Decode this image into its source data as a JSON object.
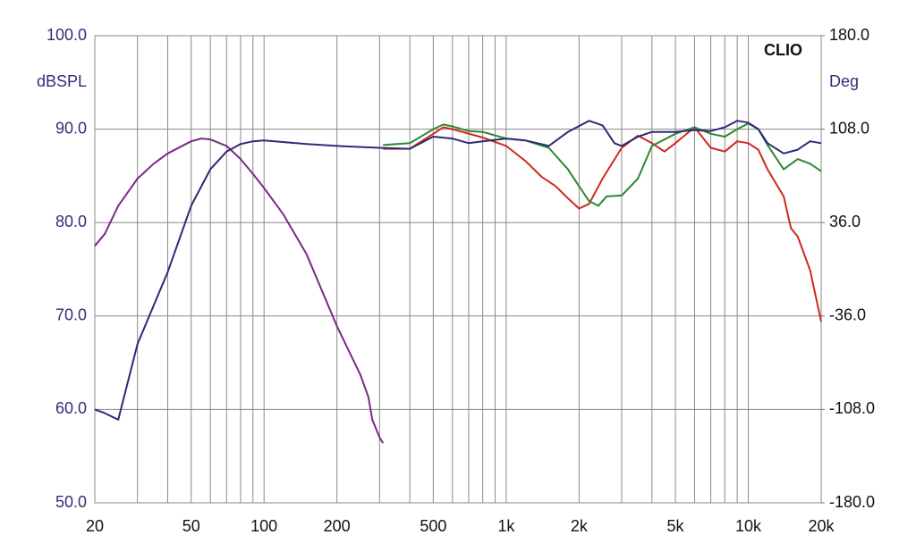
{
  "chart_data": {
    "type": "line",
    "annotation": "CLIO",
    "ylabel": "dBSPL",
    "y2label": "Deg",
    "xscale": "log",
    "grid": true,
    "xlim": [
      20,
      20000
    ],
    "xticks": [
      20,
      50,
      100,
      200,
      500,
      {
        "value": 1000,
        "label": "1k"
      },
      {
        "value": 2000,
        "label": "2k"
      },
      {
        "value": 5000,
        "label": "5k"
      },
      {
        "value": 10000,
        "label": "10k"
      },
      {
        "value": 20000,
        "label": "20k"
      }
    ],
    "minor_xticks": [
      30,
      40,
      60,
      70,
      80,
      90,
      300,
      400,
      600,
      700,
      800,
      900,
      3000,
      4000,
      6000,
      7000,
      8000,
      9000
    ],
    "ylim": [
      50,
      100
    ],
    "yticks": [
      {
        "value": 50,
        "label": "50.0"
      },
      {
        "value": 60,
        "label": "60.0"
      },
      {
        "value": 70,
        "label": "70.0"
      },
      {
        "value": 80,
        "label": "80.0"
      },
      {
        "value": 90,
        "label": "90.0"
      },
      {
        "value": 100,
        "label": "100.0"
      }
    ],
    "y2lim": [
      -180,
      180
    ],
    "y2ticks": [
      {
        "value": -180,
        "label": "-180.0"
      },
      {
        "value": -108,
        "label": "-108.0"
      },
      {
        "value": -36,
        "label": "-36.0"
      },
      {
        "value": 36,
        "label": "36.0"
      },
      {
        "value": 108,
        "label": "108.0"
      },
      {
        "value": 180,
        "label": "180.0"
      }
    ],
    "series": [
      {
        "color": "#7a2a86",
        "x": [
          20,
          22,
          25,
          30,
          35,
          40,
          50,
          55,
          60,
          70,
          80,
          90,
          100,
          120,
          150,
          200,
          250,
          270,
          280,
          300,
          310
        ],
        "values": [
          77.5,
          78.8,
          81.8,
          84.7,
          86.3,
          87.4,
          88.7,
          89.0,
          88.9,
          88.2,
          86.8,
          85.2,
          83.7,
          80.9,
          76.6,
          68.9,
          63.7,
          61.3,
          58.9,
          57.0,
          56.4
        ]
      },
      {
        "color": "#cc2a1e",
        "x": [
          310,
          400,
          500,
          550,
          600,
          800,
          1000,
          1200,
          1400,
          1600,
          1800,
          2000,
          2200,
          2500,
          3000,
          3500,
          4000,
          4500,
          5000,
          6000,
          7000,
          8000,
          9000,
          10000,
          11000,
          12000,
          14000,
          15000,
          16000,
          18000,
          20000
        ],
        "values": [
          87.9,
          87.9,
          89.5,
          90.2,
          90.0,
          89.1,
          88.2,
          86.6,
          84.9,
          83.9,
          82.6,
          81.5,
          82.0,
          84.7,
          88.0,
          89.3,
          88.5,
          87.6,
          88.5,
          90.2,
          88.0,
          87.6,
          88.7,
          88.5,
          87.8,
          85.7,
          82.8,
          79.4,
          78.5,
          74.9,
          69.4
        ]
      },
      {
        "color": "#2a8a2e",
        "x": [
          310,
          400,
          500,
          550,
          600,
          700,
          800,
          1000,
          1200,
          1500,
          1800,
          2000,
          2200,
          2400,
          2600,
          3000,
          3500,
          4000,
          5000,
          6000,
          7000,
          8000,
          9000,
          10000,
          11000,
          12000,
          14000,
          16000,
          18000,
          20000
        ],
        "values": [
          88.3,
          88.5,
          90.0,
          90.5,
          90.3,
          89.8,
          89.7,
          89.0,
          88.8,
          88.0,
          85.7,
          83.9,
          82.3,
          81.8,
          82.8,
          82.9,
          84.7,
          88.2,
          89.5,
          90.2,
          89.5,
          89.2,
          90.0,
          90.6,
          90.0,
          88.3,
          85.7,
          86.8,
          86.3,
          85.5
        ]
      },
      {
        "color": "#2e2a78",
        "x": [
          20,
          22,
          25,
          30,
          40,
          50,
          60,
          70,
          80,
          90,
          100,
          150,
          200,
          300,
          400,
          500,
          600,
          700,
          800,
          1000,
          1200,
          1500,
          1800,
          2200,
          2500,
          2800,
          3000,
          3500,
          4000,
          5000,
          6000,
          7000,
          8000,
          9000,
          10000,
          11000,
          12000,
          14000,
          16000,
          18000,
          20000
        ],
        "values": [
          60.0,
          59.6,
          58.9,
          67.0,
          74.7,
          81.8,
          85.7,
          87.6,
          88.4,
          88.7,
          88.8,
          88.4,
          88.2,
          88.0,
          87.9,
          89.2,
          89.0,
          88.5,
          88.7,
          89.0,
          88.8,
          88.2,
          89.7,
          90.9,
          90.4,
          88.5,
          88.2,
          89.2,
          89.7,
          89.7,
          89.9,
          89.8,
          90.2,
          90.9,
          90.7,
          90.0,
          88.5,
          87.4,
          87.8,
          88.7,
          88.5
        ]
      }
    ]
  }
}
